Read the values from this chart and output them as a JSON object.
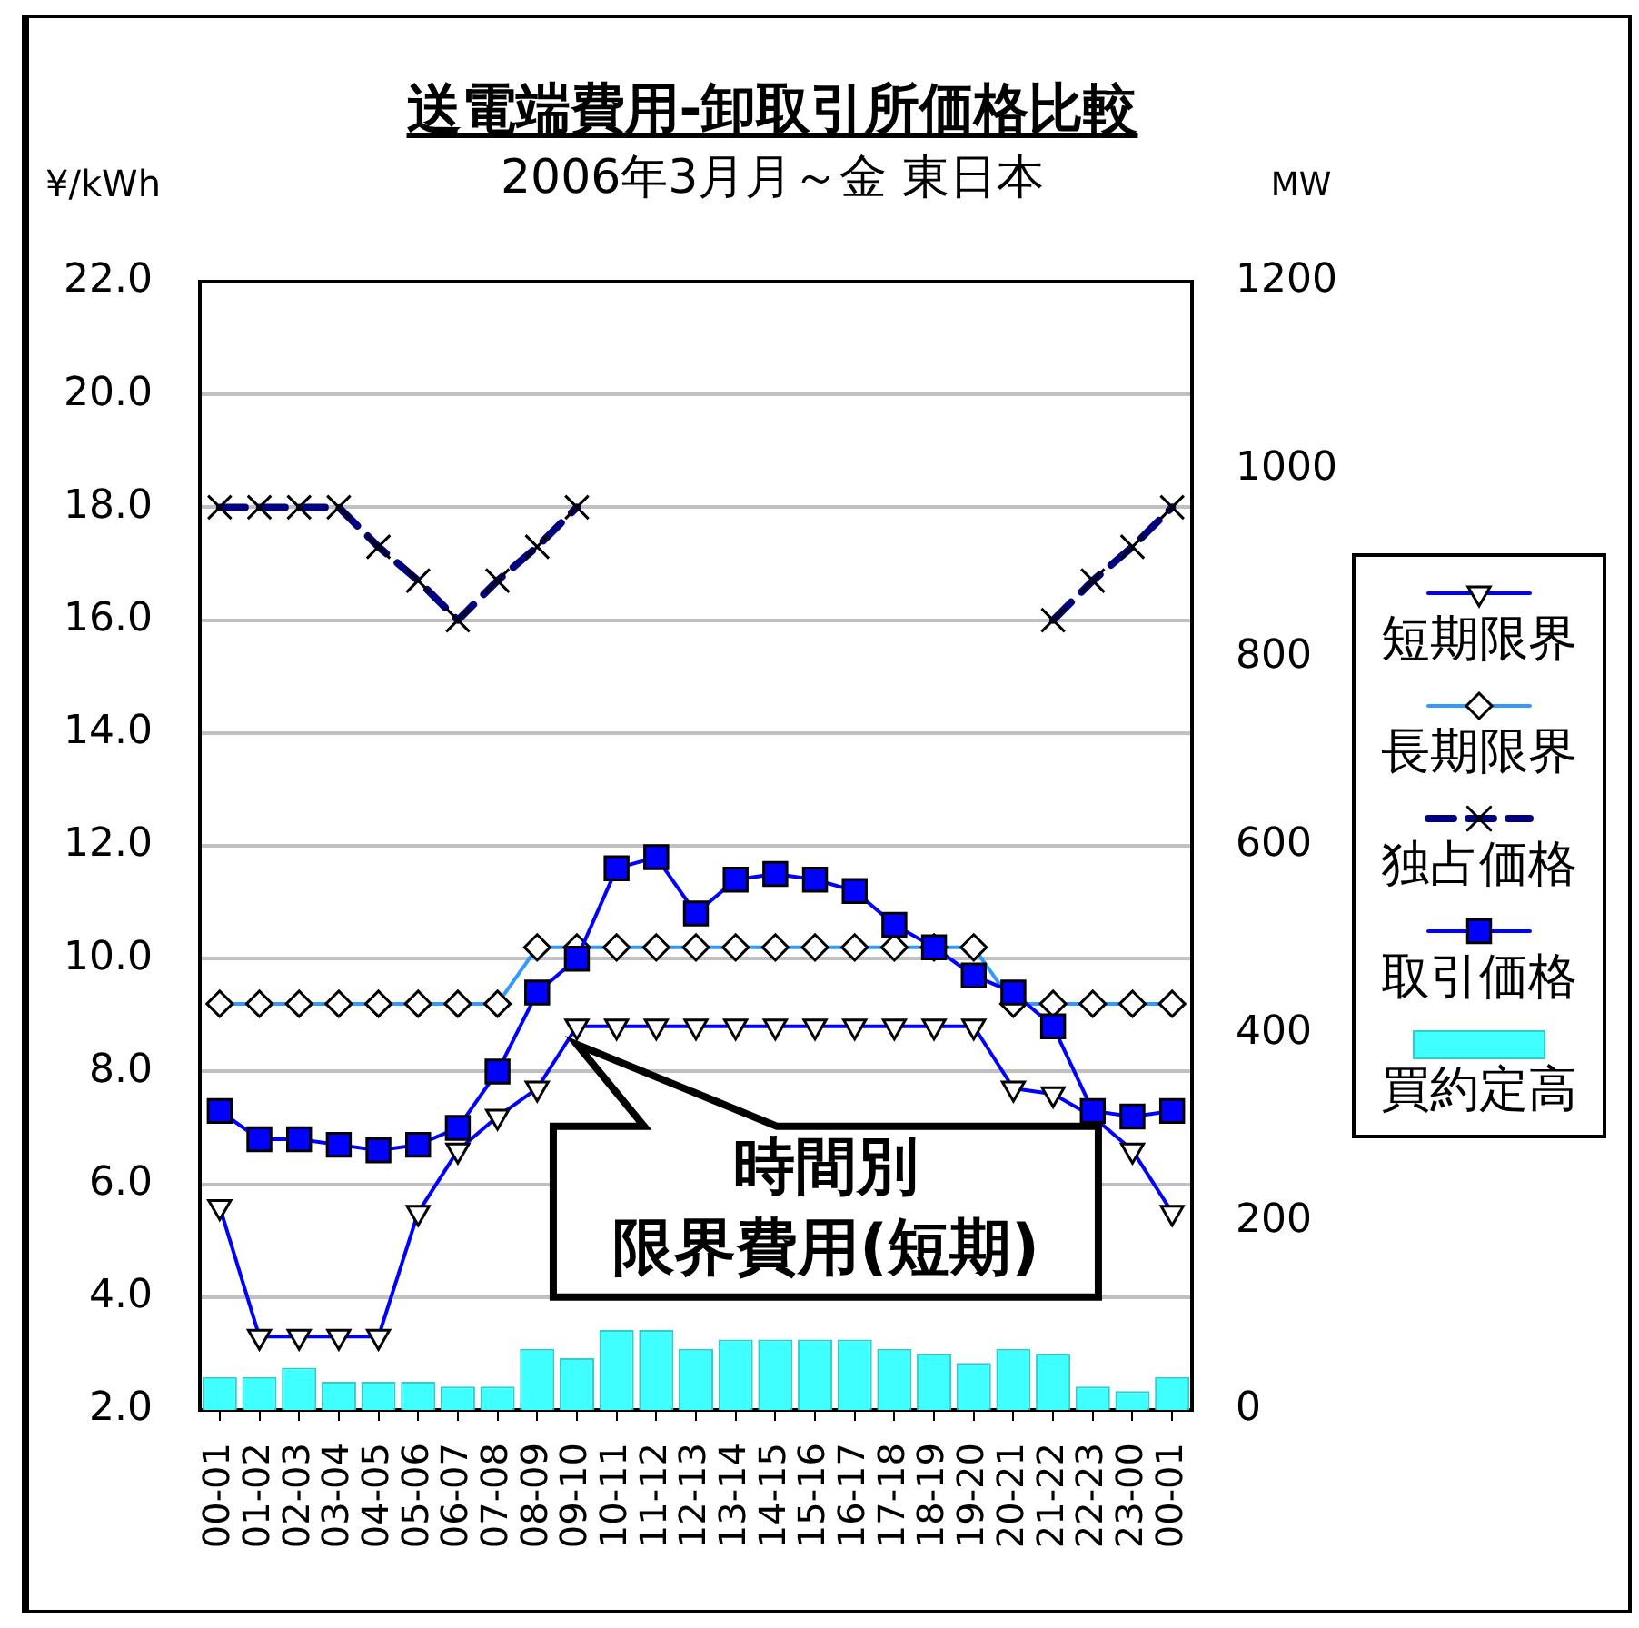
{
  "chart_data": {
    "type": "line",
    "title": "送電端費用-卸取引所価格比較",
    "subtitle": "2006年3月月～金 東日本",
    "ylabel": "¥/kWh",
    "y2label": "MW",
    "categories": [
      "00-01",
      "01-02",
      "02-03",
      "03-04",
      "04-05",
      "05-06",
      "06-07",
      "07-08",
      "08-09",
      "09-10",
      "10-11",
      "11-12",
      "12-13",
      "13-14",
      "14-15",
      "15-16",
      "16-17",
      "17-18",
      "18-19",
      "19-20",
      "20-21",
      "21-22",
      "22-23",
      "23-00",
      "00-01"
    ],
    "series": [
      {
        "name": "短期限界",
        "color": "#0000ff",
        "marker": "triangle",
        "values": [
          5.6,
          3.3,
          3.3,
          3.3,
          3.3,
          5.5,
          6.6,
          7.2,
          7.7,
          8.8,
          8.8,
          8.8,
          8.8,
          8.8,
          8.8,
          8.8,
          8.8,
          8.8,
          8.8,
          8.8,
          7.7,
          7.6,
          7.2,
          6.6,
          5.5
        ]
      },
      {
        "name": "長期限界",
        "color": "#3399ff",
        "marker": "diamond",
        "values": [
          9.2,
          9.2,
          9.2,
          9.2,
          9.2,
          9.2,
          9.2,
          9.2,
          10.2,
          10.2,
          10.2,
          10.2,
          10.2,
          10.2,
          10.2,
          10.2,
          10.2,
          10.2,
          10.2,
          10.2,
          9.2,
          9.2,
          9.2,
          9.2,
          9.2
        ]
      },
      {
        "name": "独占価格",
        "color": "#000080",
        "marker": "cross",
        "line_style": "dashed",
        "values": [
          18.0,
          18.0,
          18.0,
          18.0,
          17.3,
          16.7,
          16.0,
          16.7,
          17.3,
          18.0,
          null,
          null,
          null,
          null,
          null,
          null,
          null,
          null,
          null,
          null,
          null,
          16.0,
          16.7,
          17.3,
          18.0
        ]
      },
      {
        "name": "取引価格",
        "color": "#0000ff",
        "marker": "square",
        "values": [
          7.3,
          6.8,
          6.8,
          6.7,
          6.6,
          6.7,
          7.0,
          8.0,
          9.4,
          10.0,
          11.6,
          11.8,
          10.8,
          11.4,
          11.5,
          11.4,
          11.2,
          10.6,
          10.2,
          9.7,
          9.4,
          8.8,
          7.3,
          7.2,
          7.3
        ]
      },
      {
        "name": "買約定高",
        "type": "bar",
        "axis": "y2",
        "color": "#40ffff",
        "values": [
          35,
          35,
          45,
          30,
          30,
          30,
          25,
          25,
          65,
          55,
          85,
          85,
          65,
          75,
          75,
          75,
          75,
          65,
          60,
          50,
          65,
          60,
          25,
          20,
          35
        ]
      }
    ],
    "ylim": [
      2,
      22
    ],
    "yticks": [
      {
        "value": 2,
        "label": "2.0"
      },
      {
        "value": 4,
        "label": "4.0"
      },
      {
        "value": 6,
        "label": "6.0"
      },
      {
        "value": 8,
        "label": "8.0"
      },
      {
        "value": 10,
        "label": "10.0"
      },
      {
        "value": 12,
        "label": "12.0"
      },
      {
        "value": 14,
        "label": "14.0"
      },
      {
        "value": 16,
        "label": "16.0"
      },
      {
        "value": 18,
        "label": "18.0"
      },
      {
        "value": 20,
        "label": "20.0"
      },
      {
        "value": 22,
        "label": "22.0"
      }
    ],
    "y2lim": [
      0,
      1200
    ],
    "y2ticks": [
      0,
      200,
      400,
      600,
      800,
      1000,
      1200
    ],
    "grid": "y",
    "legend": "right",
    "annotations": [
      {
        "text": "時間別限界費用(短期)",
        "x": "09-10",
        "y": 8.8
      }
    ]
  }
}
